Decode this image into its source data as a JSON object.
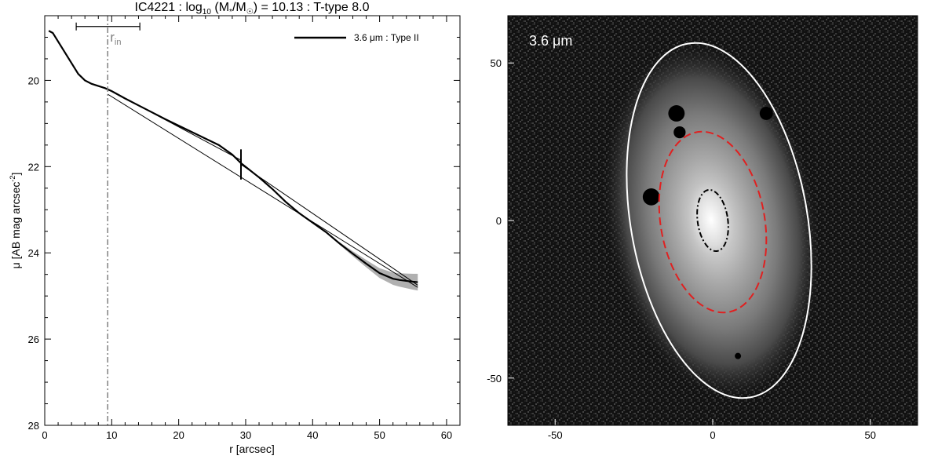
{
  "figure": {
    "title_parts": {
      "name": "IC4221 : log",
      "sub10": "10",
      "mid": " (M",
      "star": "*",
      "slash": "/M",
      "sun": "☉",
      "rest": ") = 10.13 : T-type 8.0"
    }
  },
  "chart_data": [
    {
      "type": "line",
      "xlabel": "r [arcsec]",
      "ylabel_parts": {
        "main": "μ [AB mag arcsec",
        "sup": "-2",
        "end": "]"
      },
      "xlim": [
        0,
        62
      ],
      "ylim": [
        28,
        18.5
      ],
      "y_inverted": true,
      "x_ticks": [
        0,
        10,
        20,
        30,
        40,
        50,
        60
      ],
      "y_ticks": [
        20,
        22,
        24,
        26,
        28
      ],
      "legend": {
        "label": "3.6 μm : Type II",
        "position": "top-right"
      },
      "series": [
        {
          "name": "3.6 μm : Type II",
          "x": [
            0.6,
            1.2,
            2,
            3,
            4,
            5,
            6,
            7,
            8,
            9,
            10,
            12,
            14,
            16,
            18,
            20,
            22,
            24,
            26,
            28,
            29.3,
            32,
            34,
            36,
            38,
            40,
            42,
            44,
            46,
            48,
            50,
            52,
            53,
            54,
            55,
            55.7
          ],
          "y": [
            18.85,
            18.9,
            19.1,
            19.35,
            19.6,
            19.85,
            20.0,
            20.08,
            20.13,
            20.18,
            20.25,
            20.42,
            20.58,
            20.74,
            20.9,
            21.05,
            21.2,
            21.35,
            21.5,
            21.72,
            21.92,
            22.25,
            22.52,
            22.82,
            23.08,
            23.3,
            23.52,
            23.78,
            24.02,
            24.25,
            24.47,
            24.6,
            24.63,
            24.65,
            24.67,
            24.68
          ]
        }
      ],
      "fits": [
        {
          "x": [
            9.4,
            29.3
          ],
          "y": [
            20.2,
            21.85
          ]
        },
        {
          "x": [
            9.4,
            55.7
          ],
          "y": [
            20.32,
            24.8
          ]
        },
        {
          "x": [
            29.3,
            55.7
          ],
          "y": [
            21.95,
            24.75
          ]
        }
      ],
      "uncertainty_band_x": [
        44,
        55.7
      ],
      "r_in": {
        "x": 9.4,
        "label": "r",
        "sub": "in",
        "range": [
          4.7,
          14.2
        ],
        "range_y": 18.75
      },
      "break_marker": {
        "x": 29.3,
        "y_span": [
          21.6,
          22.3
        ]
      }
    },
    {
      "type": "image",
      "label": "3.6 μm",
      "xlim": [
        -65,
        65
      ],
      "ylim": [
        -65,
        65
      ],
      "x_ticks": [
        -50,
        0,
        50
      ],
      "y_ticks": [
        -50,
        0,
        50
      ],
      "ellipses": [
        {
          "name": "outer",
          "color": "#ffffff",
          "style": "solid",
          "cx": 2,
          "cy": 0,
          "rx": 28,
          "ry": 57,
          "angle": -10
        },
        {
          "name": "inner",
          "color": "#e02020",
          "style": "dashed",
          "cx": 0,
          "cy": -0.5,
          "rx": 16.5,
          "ry": 29,
          "angle": -10
        },
        {
          "name": "core",
          "color": "#000000",
          "style": "dashdot",
          "cx": 0,
          "cy": 0,
          "rx": 4.8,
          "ry": 9.8,
          "angle": -8
        }
      ],
      "masked_stars": [
        {
          "x": -11.5,
          "y": 34,
          "r": 2.6
        },
        {
          "x": -10.5,
          "y": 28,
          "r": 1.9
        },
        {
          "x": 17,
          "y": 34,
          "r": 2.1
        },
        {
          "x": -19.5,
          "y": 7.5,
          "r": 2.7
        },
        {
          "x": 8,
          "y": -43,
          "r": 1.0
        }
      ]
    }
  ]
}
